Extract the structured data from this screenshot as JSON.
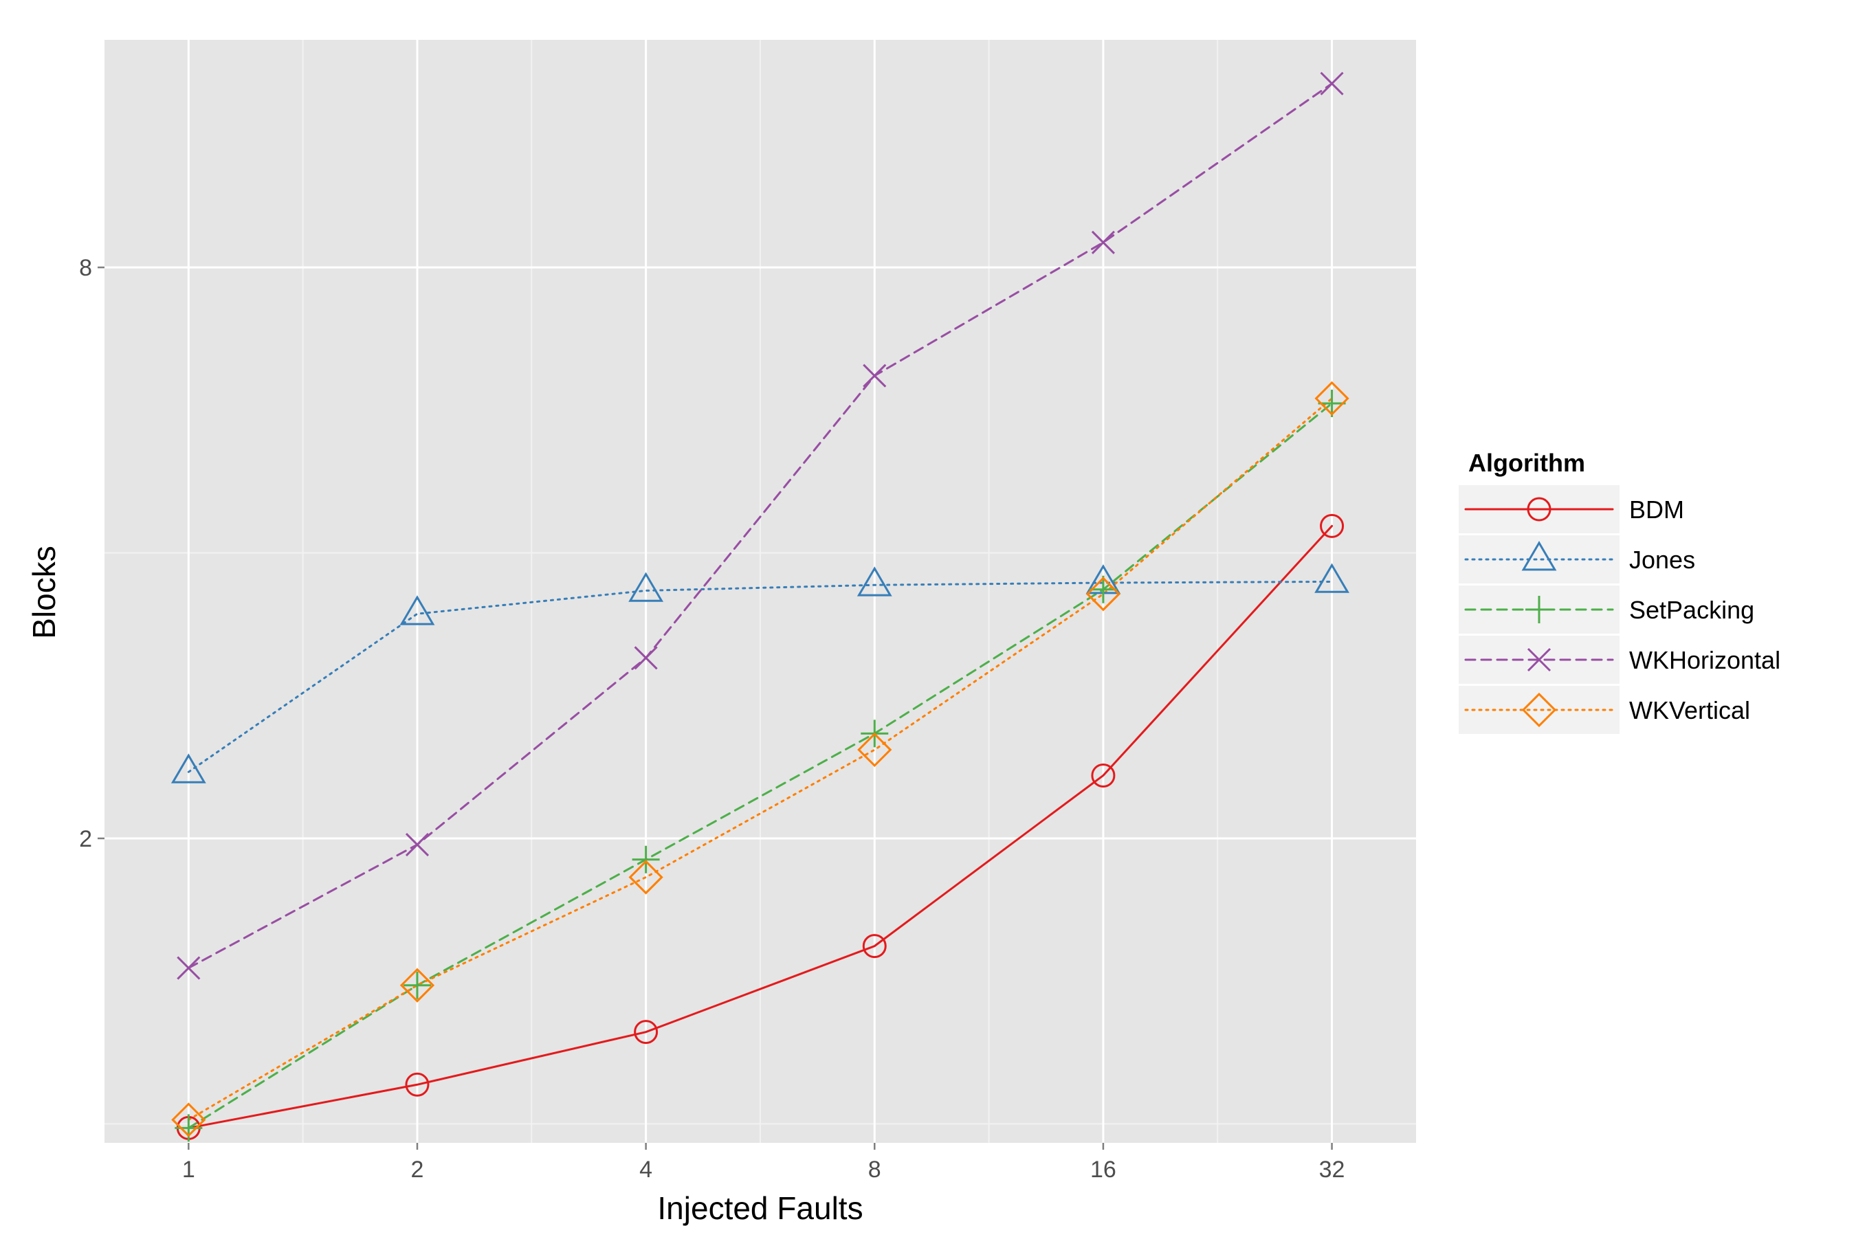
{
  "chart_data": {
    "type": "line",
    "xlabel": "Injected Faults",
    "ylabel": "Blocks",
    "x_scale": "log2",
    "y_scale": "log",
    "x": [
      1,
      2,
      4,
      8,
      16,
      32
    ],
    "x_tick_labels": [
      "1",
      "2",
      "4",
      "8",
      "16",
      "32"
    ],
    "y_ticks": [
      2,
      8
    ],
    "y_tick_labels": [
      "2",
      "8"
    ],
    "xlim": [
      0.775,
      41.3
    ],
    "ylim": [
      0.955,
      13.9
    ],
    "grid": true,
    "legend": {
      "title": "Algorithm",
      "placement": "right"
    },
    "series": [
      {
        "name": "BDM",
        "color": "#e41a1c",
        "line": "solid",
        "marker": "circle",
        "values": [
          0.99,
          1.1,
          1.25,
          1.54,
          2.33,
          4.27
        ]
      },
      {
        "name": "Jones",
        "color": "#377eb8",
        "line": "dotted",
        "marker": "triangle",
        "values": [
          2.35,
          3.45,
          3.65,
          3.7,
          3.72,
          3.73
        ]
      },
      {
        "name": "SetPacking",
        "color": "#4daf4a",
        "line": "dashed",
        "marker": "plus",
        "values": [
          0.99,
          1.4,
          1.9,
          2.58,
          3.66,
          5.75
        ]
      },
      {
        "name": "WKHorizontal",
        "color": "#984ea3",
        "line": "dashed",
        "marker": "x",
        "values": [
          1.46,
          1.97,
          3.1,
          6.15,
          8.5,
          12.5
        ]
      },
      {
        "name": "WKVertical",
        "color": "#ff7f00",
        "line": "dotted",
        "marker": "diamond",
        "values": [
          1.01,
          1.4,
          1.82,
          2.48,
          3.62,
          5.82
        ]
      }
    ]
  }
}
